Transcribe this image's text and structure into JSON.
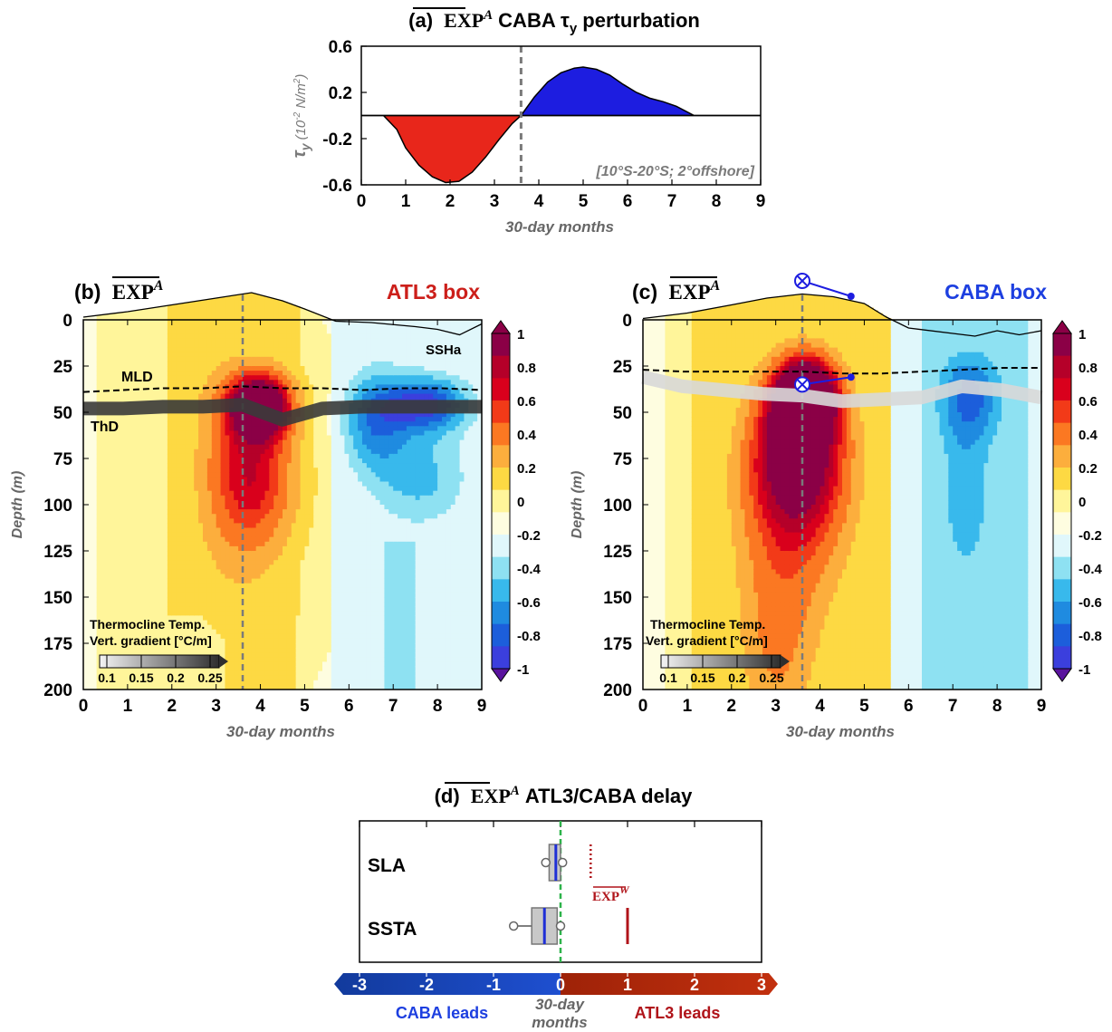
{
  "colors": {
    "red": "#e8261b",
    "blue": "#1d1de0",
    "atl3_title": "#cc1f1a",
    "caba_title": "#1d3fe0",
    "dashed": "#7a7a7a",
    "green": "#2db34a",
    "delay_red": "#b0141a",
    "box_fill": "#c8c8c8",
    "median": "#1f2fd6"
  },
  "panel_a": {
    "label": "(a)",
    "exp": "EXP",
    "exp_sup": "A",
    "title_rest": "CABA τ",
    "title_sub": "y",
    "title_end": " perturbation",
    "ylabel": "τ",
    "ylabel_sub": "y",
    "ylabel_unit": "(10",
    "ylabel_exp": "-2",
    "ylabel_unit2": " N/m",
    "ylabel_exp2": "2",
    "ylabel_close": ")",
    "xlabel": "30-day months",
    "note": "[10°S-20°S; 2°offshore]",
    "chart_data": {
      "type": "area",
      "x": [
        0,
        0.5,
        0.8,
        1.0,
        1.3,
        1.6,
        1.9,
        2.2,
        2.5,
        2.8,
        3.1,
        3.4,
        3.6,
        3.9,
        4.2,
        4.5,
        4.8,
        5.0,
        5.3,
        5.6,
        5.9,
        6.2,
        6.5,
        6.8,
        7.1,
        7.3,
        7.5,
        8.0,
        9.0
      ],
      "y": [
        0,
        0,
        -0.12,
        -0.28,
        -0.43,
        -0.53,
        -0.58,
        -0.57,
        -0.49,
        -0.36,
        -0.21,
        -0.07,
        0,
        0.16,
        0.29,
        0.37,
        0.41,
        0.42,
        0.4,
        0.35,
        0.27,
        0.2,
        0.15,
        0.12,
        0.08,
        0.04,
        0,
        0,
        0
      ],
      "xlim": [
        0,
        9
      ],
      "ylim": [
        -0.6,
        0.6
      ],
      "xticks": [
        "0",
        "1",
        "2",
        "3",
        "4",
        "5",
        "6",
        "7",
        "8",
        "9"
      ],
      "yticks": [
        "0.6",
        "0.2",
        "-0.2",
        "-0.6"
      ],
      "ytick_values": [
        0.6,
        0.2,
        -0.2,
        -0.6
      ],
      "vline_x": 3.6,
      "negative_color": "#e8261b",
      "positive_color": "#1d1de0"
    }
  },
  "panel_b": {
    "label": "(b)",
    "exp": "EXP",
    "exp_sup": "A",
    "box": "ATL3 box",
    "ylabel": "Depth (m)",
    "xlabel": "30-day months",
    "mld": "MLD",
    "thd": "ThD",
    "ssha": "SSHa",
    "legend_title1": "Thermocline Temp.",
    "legend_title2": "Vert. gradient [°C/m]",
    "legend_ticks": [
      "0.1",
      "0.15",
      "0.2",
      "0.25"
    ],
    "chart_data": {
      "type": "heatmap",
      "xlim": [
        0,
        9
      ],
      "ylim": [
        200,
        0
      ],
      "xticks": [
        "0",
        "1",
        "2",
        "3",
        "4",
        "5",
        "6",
        "7",
        "8",
        "9"
      ],
      "yticks": [
        "0",
        "25",
        "50",
        "75",
        "100",
        "125",
        "150",
        "175",
        "200"
      ],
      "vline_x": 3.6,
      "ssh_x": [
        0,
        1,
        2,
        3,
        3.8,
        4.5,
        5,
        5.7,
        6.5,
        7.5,
        8,
        8.5,
        9
      ],
      "ssh_y": [
        0.1,
        0.3,
        0.55,
        0.8,
        1.0,
        0.7,
        0.4,
        -0.05,
        -0.1,
        -0.25,
        -0.35,
        -0.55,
        -0.15
      ],
      "mld_depth": [
        39,
        38,
        37,
        37,
        36,
        37,
        37,
        38,
        37,
        37,
        38
      ],
      "thd_depth": [
        48,
        48,
        47,
        47,
        46,
        54,
        48,
        47,
        47,
        47,
        47
      ]
    }
  },
  "panel_c": {
    "label": "(c)",
    "exp": "EXP",
    "exp_sup": "A",
    "box": "CABA box",
    "ylabel": "Depth (m)",
    "xlabel": "30-day months",
    "legend_title1": "Thermocline Temp.",
    "legend_title2": "Vert. gradient [°C/m]",
    "legend_ticks": [
      "0.1",
      "0.15",
      "0.2",
      "0.25"
    ],
    "chart_data": {
      "type": "heatmap",
      "xlim": [
        0,
        9
      ],
      "ylim": [
        200,
        0
      ],
      "xticks": [
        "0",
        "1",
        "2",
        "3",
        "4",
        "5",
        "6",
        "7",
        "8",
        "9"
      ],
      "yticks": [
        "0",
        "25",
        "50",
        "75",
        "100",
        "125",
        "150",
        "175",
        "200"
      ],
      "vline_x": 3.6,
      "ssh_x": [
        0,
        1,
        2,
        2.8,
        3.6,
        4.3,
        5,
        5.5,
        6,
        7,
        7.5,
        8,
        8.5,
        9
      ],
      "ssh_y": [
        0.05,
        0.25,
        0.55,
        0.8,
        0.95,
        0.85,
        0.6,
        0.1,
        -0.3,
        -0.5,
        -0.6,
        -0.4,
        -0.55,
        -0.4
      ],
      "mld_depth": [
        27,
        28,
        28,
        28,
        28,
        29,
        29,
        28,
        27,
        26,
        26
      ],
      "thd_depth": [
        31,
        36,
        38,
        40,
        41,
        44,
        43,
        42,
        36,
        38,
        42
      ]
    }
  },
  "colorbar": {
    "ticks": [
      "1",
      "0.8",
      "0.6",
      "0.4",
      "0.2",
      "0",
      "-0.2",
      "-0.4",
      "-0.6",
      "-0.8",
      "-1"
    ],
    "colors": [
      "#8b0046",
      "#b50029",
      "#d9001c",
      "#f23a18",
      "#fb7822",
      "#fcae3d",
      "#fdd943",
      "#fff59a",
      "#fefde0",
      "#e0f7fb",
      "#8ee1f2",
      "#38b9ec",
      "#1f8be0",
      "#1c5edb",
      "#3b3fdd",
      "#5a2ec8",
      "#5a139e"
    ]
  },
  "panel_d": {
    "label": "(d)",
    "exp": "EXP",
    "exp_sup": "A",
    "title_rest": "ATL3/CABA delay",
    "rows": [
      "SLA",
      "SSTA"
    ],
    "exp_w": "EXP",
    "exp_w_sup": "W",
    "axis_label1": "30-day",
    "axis_label2": "months",
    "caba_leads": "CABA leads",
    "atl3_leads": "ATL3 leads",
    "chart_data": {
      "type": "box",
      "xlim": [
        -3,
        3
      ],
      "xticks": [
        "-3",
        "-2",
        "-1",
        "0",
        "1",
        "2",
        "3"
      ],
      "categories": [
        "SLA",
        "SSTA"
      ],
      "boxes": [
        {
          "name": "SLA",
          "whisker_low": -0.22,
          "q1": -0.17,
          "median": -0.07,
          "q3": 0.0,
          "whisker_high": 0.03,
          "outliers": [
            -0.22,
            0.03
          ]
        },
        {
          "name": "SSTA",
          "whisker_low": -0.7,
          "q1": -0.43,
          "median": -0.24,
          "q3": -0.05,
          "whisker_high": 0.0,
          "outliers": [
            -0.7,
            0.0
          ]
        }
      ],
      "exp_w": {
        "SLA": 0.45,
        "SSTA": 1.0
      }
    }
  }
}
